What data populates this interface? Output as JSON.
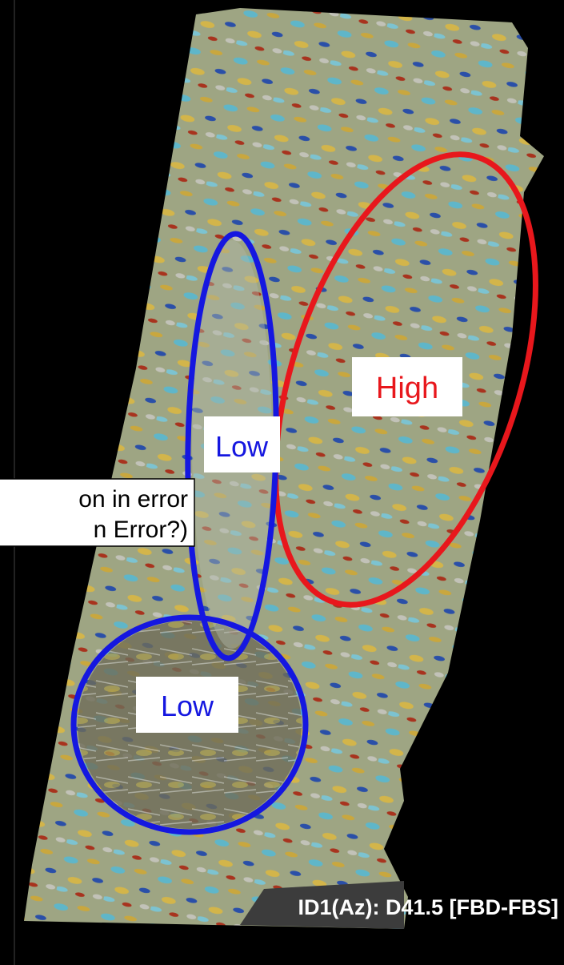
{
  "labels": {
    "high": "High",
    "low_top": "Low",
    "low_bottom": "Low"
  },
  "callout": [
    "on in error",
    "n Error?)"
  ],
  "caption": "ID1(Az): D41.5 [FBD-FBS]"
}
